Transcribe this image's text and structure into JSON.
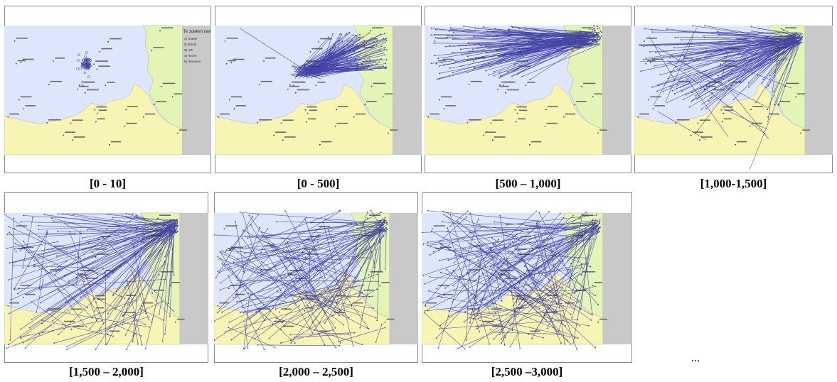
{
  "figure": {
    "panels": [
      {
        "caption": "[0 - 10]",
        "pattern": "cluster"
      },
      {
        "caption": "[0 - 500]",
        "pattern": "center-to-ne"
      },
      {
        "caption": "[500 – 1,000]",
        "pattern": "west-to-ne"
      },
      {
        "caption": "[1,000-1,500]",
        "pattern": "spread-ne"
      },
      {
        "caption": "[1,500 – 2,000]",
        "pattern": "wide-ne"
      },
      {
        "caption": "[2,000 – 2,500]",
        "pattern": "random-ne"
      },
      {
        "caption": "[2,500 –3,000]",
        "pattern": "random"
      }
    ],
    "ellipsis": "...",
    "legend": {
      "title": "Te zoeken namen:",
      "items": [
        "1) Sneek",
        "2) Breda",
        "3) Urk",
        "4) Hoorn",
        "5) Deventer"
      ]
    },
    "colors": {
      "land_blue": "#dde6fa",
      "land_yellow": "#f7f4b4",
      "land_green": "#e4f3b6",
      "sidebar_gray": "#c9c9c9",
      "trace_line": "#2a2a9a"
    }
  }
}
